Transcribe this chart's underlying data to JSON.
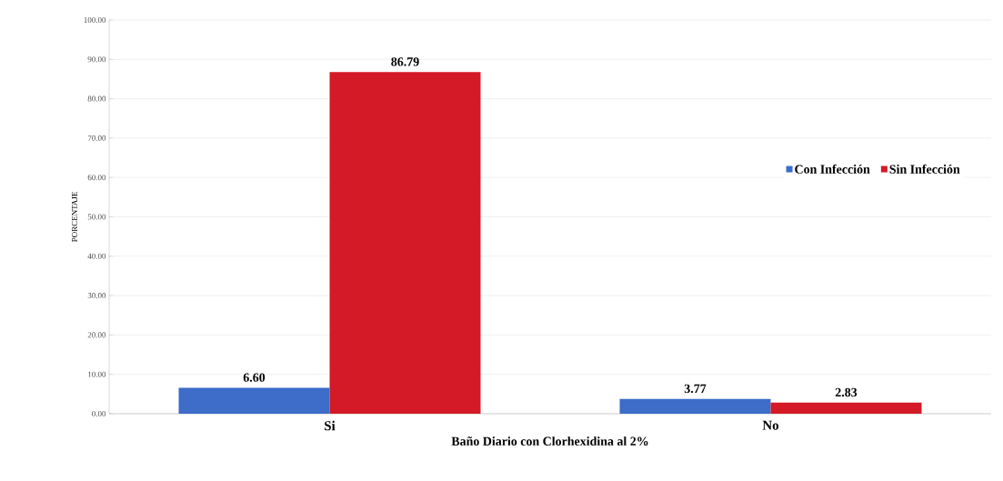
{
  "chart_data": {
    "type": "bar",
    "xlabel": "Baño Diario con Clorhexidina al 2%",
    "ylabel": "PORCENTAJE",
    "categories": [
      "Si",
      "No"
    ],
    "series": [
      {
        "name": "Con Infección",
        "color": "#3d6cc9",
        "values": [
          6.6,
          3.77
        ],
        "value_labels": [
          "6.60",
          "3.77"
        ]
      },
      {
        "name": "Sin Infección",
        "color": "#d41a26",
        "values": [
          86.79,
          2.83
        ],
        "value_labels": [
          "86.79",
          "2.83"
        ]
      }
    ],
    "ylim": [
      0,
      100
    ],
    "yticks": [
      {
        "value": 0,
        "label": "0.00"
      },
      {
        "value": 10,
        "label": "10.00"
      },
      {
        "value": 20,
        "label": "20.00"
      },
      {
        "value": 30,
        "label": "30.00"
      },
      {
        "value": 40,
        "label": "40.00"
      },
      {
        "value": 50,
        "label": "50.00"
      },
      {
        "value": 60,
        "label": "60.00"
      },
      {
        "value": 70,
        "label": "70.00"
      },
      {
        "value": 80,
        "label": "80.00"
      },
      {
        "value": 90,
        "label": "90.00"
      },
      {
        "value": 100,
        "label": "100.00"
      }
    ],
    "grid": "y",
    "legend": "right"
  }
}
